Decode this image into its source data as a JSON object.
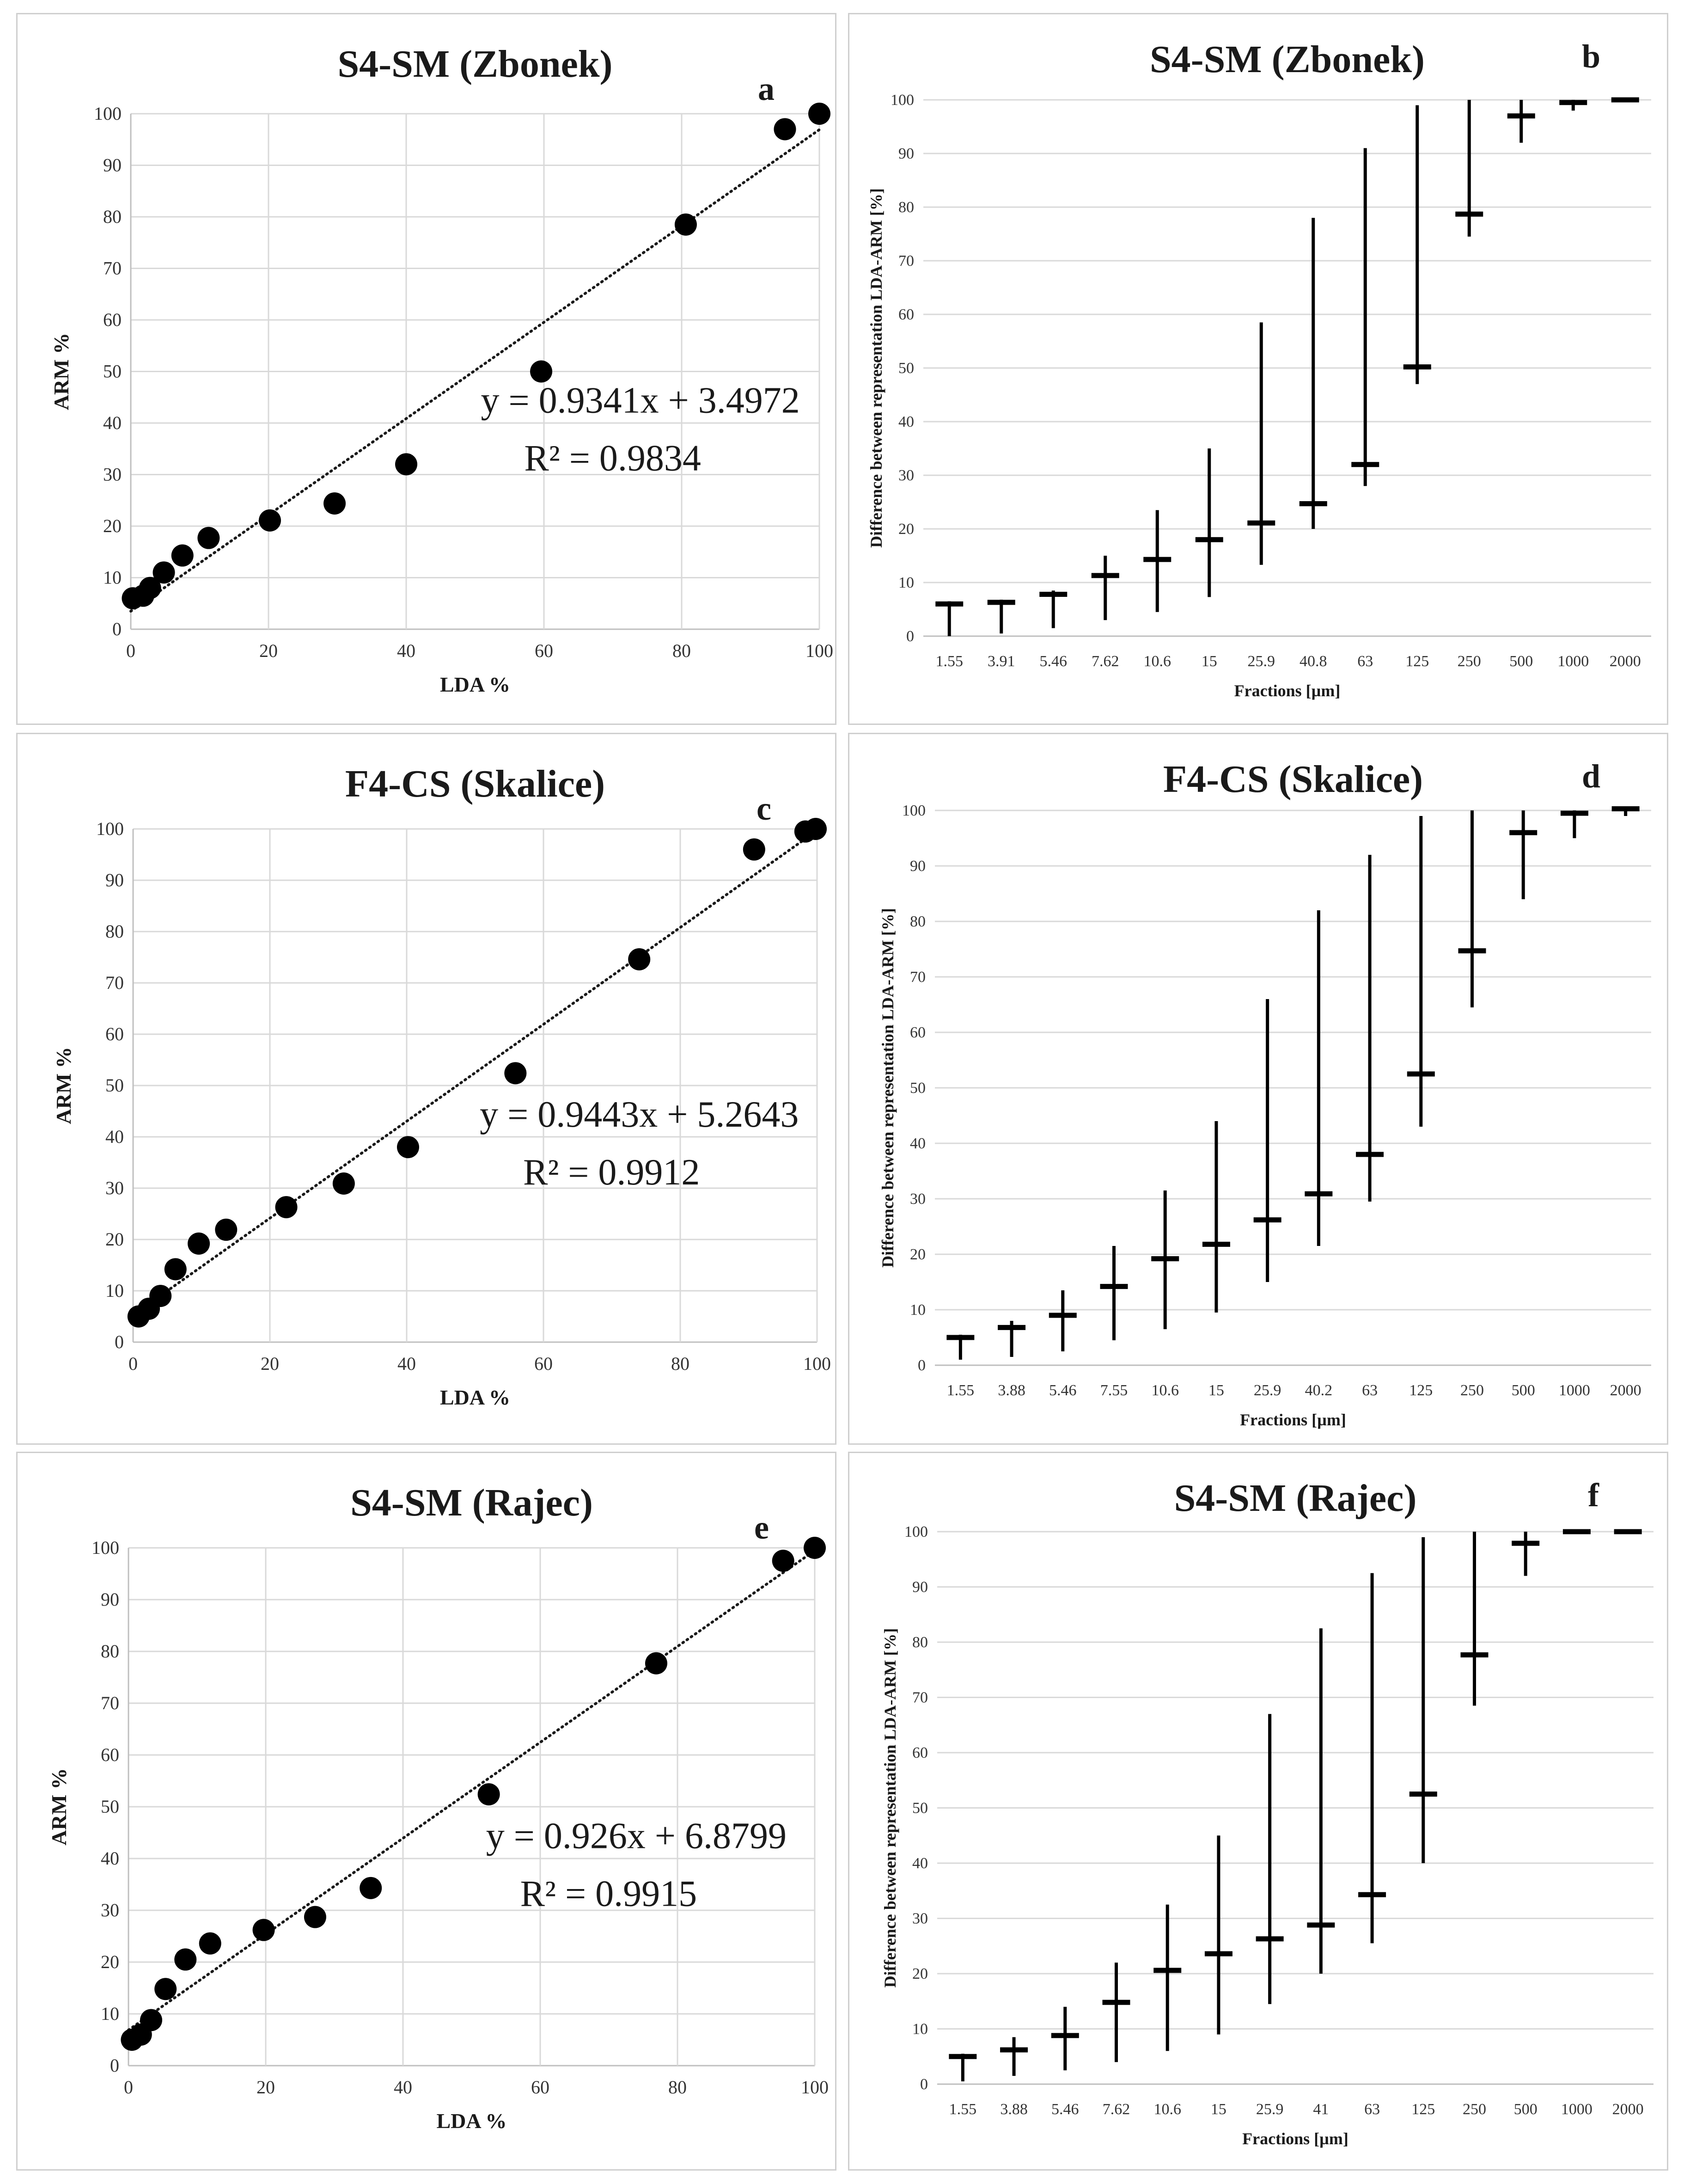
{
  "chart_data": [
    {
      "id": "a",
      "type": "scatter",
      "title": "S4-SM (Zbonek)",
      "letter": "a",
      "xlabel": "LDA %",
      "ylabel": "ARM %",
      "xlim": [
        0,
        100
      ],
      "ylim": [
        0,
        100
      ],
      "xticks": [
        0,
        20,
        40,
        60,
        80,
        100
      ],
      "yticks": [
        0,
        10,
        20,
        30,
        40,
        50,
        60,
        70,
        80,
        90,
        100
      ],
      "points": [
        [
          0.3,
          6
        ],
        [
          1.8,
          6.5
        ],
        [
          2.8,
          8
        ],
        [
          4.8,
          11
        ],
        [
          7.5,
          14.3
        ],
        [
          11.3,
          17.7
        ],
        [
          20.2,
          21.1
        ],
        [
          29.6,
          24.4
        ],
        [
          40,
          32
        ],
        [
          59.6,
          50
        ],
        [
          80.6,
          78.5
        ],
        [
          95,
          97
        ],
        [
          100,
          100
        ]
      ],
      "trendline": {
        "slope": 0.9341,
        "intercept": 3.4972
      },
      "equation": "y = 0.9341x + 3.4972",
      "r2": "R² = 0.9834"
    },
    {
      "id": "b",
      "type": "stock",
      "title": "S4-SM (Zbonek)",
      "letter": "b",
      "xlabel": "Fractions [µm]",
      "ylabel": "Difference between representation LDA-ARM [%]",
      "ylim": [
        0,
        100
      ],
      "yticks": [
        0,
        10,
        20,
        30,
        40,
        50,
        60,
        70,
        80,
        90,
        100
      ],
      "categories": [
        "1.55",
        "3.91",
        "5.46",
        "7.62",
        "10.6",
        "15",
        "25.9",
        "40.8",
        "63",
        "125",
        "250",
        "500",
        "1000",
        "2000"
      ],
      "high": [
        6.5,
        6.8,
        8.5,
        15,
        23.5,
        35,
        58.5,
        78,
        91,
        99,
        100,
        100,
        100,
        100.3
      ],
      "low": [
        0,
        0.5,
        1.5,
        3,
        4.5,
        7.3,
        13.3,
        20,
        28,
        47,
        74.5,
        92,
        98,
        99.8
      ],
      "close": [
        6,
        6.3,
        7.8,
        11.3,
        14.3,
        18,
        21.1,
        24.7,
        32,
        50.2,
        78.7,
        97,
        99.5,
        100
      ]
    },
    {
      "id": "c",
      "type": "scatter",
      "title": "F4-CS (Skalice)",
      "letter": "c",
      "xlabel": "LDA %",
      "ylabel": "ARM %",
      "xlim": [
        0,
        100
      ],
      "ylim": [
        0,
        100
      ],
      "xticks": [
        0,
        20,
        40,
        60,
        80,
        100
      ],
      "yticks": [
        0,
        10,
        20,
        30,
        40,
        50,
        60,
        70,
        80,
        90,
        100
      ],
      "points": [
        [
          0.8,
          5
        ],
        [
          2.3,
          6.5
        ],
        [
          4,
          9
        ],
        [
          6.2,
          14.2
        ],
        [
          9.6,
          19.2
        ],
        [
          13.6,
          21.9
        ],
        [
          22.4,
          26.3
        ],
        [
          30.8,
          30.9
        ],
        [
          40.2,
          38
        ],
        [
          55.9,
          52.4
        ],
        [
          74,
          74.6
        ],
        [
          90.8,
          96
        ],
        [
          98.3,
          99.5
        ],
        [
          99.8,
          100
        ]
      ],
      "trendline": {
        "slope": 0.9443,
        "intercept": 5.2643
      },
      "equation": "y = 0.9443x + 5.2643",
      "r2": "R² = 0.9912"
    },
    {
      "id": "d",
      "type": "stock",
      "title": "F4-CS (Skalice)",
      "letter": "d",
      "xlabel": "Fractions [µm]",
      "ylabel": "Difference between representation LDA-ARM [%]",
      "ylim": [
        0,
        100
      ],
      "yticks": [
        0,
        10,
        20,
        30,
        40,
        50,
        60,
        70,
        80,
        90,
        100
      ],
      "categories": [
        "1.55",
        "3.88",
        "5.46",
        "7.55",
        "10.6",
        "15",
        "25.9",
        "40.2",
        "63",
        "125",
        "250",
        "500",
        "1000",
        "2000"
      ],
      "high": [
        5.5,
        8,
        13.5,
        21.5,
        31.5,
        44,
        66,
        82,
        92,
        99,
        100,
        100,
        100,
        100.5
      ],
      "low": [
        1,
        1.5,
        2.5,
        4.5,
        6.5,
        9.5,
        15,
        21.5,
        29.5,
        43,
        64.5,
        84,
        95,
        99
      ],
      "close": [
        5,
        6.8,
        9,
        14.2,
        19.2,
        21.8,
        26.2,
        30.9,
        38,
        52.5,
        74.7,
        96,
        99.5,
        100.3
      ]
    },
    {
      "id": "e",
      "type": "scatter",
      "title": "S4-SM (Rajec)",
      "letter": "e",
      "xlabel": "LDA %",
      "ylabel": "ARM %",
      "xlim": [
        0,
        100
      ],
      "ylim": [
        0,
        100
      ],
      "xticks": [
        0,
        20,
        40,
        60,
        80,
        100
      ],
      "yticks": [
        0,
        10,
        20,
        30,
        40,
        50,
        60,
        70,
        80,
        90,
        100
      ],
      "points": [
        [
          0.5,
          5
        ],
        [
          1.8,
          6
        ],
        [
          3.3,
          8.8
        ],
        [
          5.4,
          14.8
        ],
        [
          8.3,
          20.5
        ],
        [
          11.9,
          23.6
        ],
        [
          19.7,
          26.2
        ],
        [
          27.2,
          28.7
        ],
        [
          35.3,
          34.3
        ],
        [
          52.5,
          52.4
        ],
        [
          76.9,
          77.7
        ],
        [
          95.4,
          97.5
        ],
        [
          100,
          100
        ]
      ],
      "trendline": {
        "slope": 0.926,
        "intercept": 6.8799
      },
      "equation": "y = 0.926x + 6.8799",
      "r2": "R² = 0.9915"
    },
    {
      "id": "f",
      "type": "stock",
      "title": "S4-SM (Rajec)",
      "letter": "f",
      "xlabel": "Fractions [µm]",
      "ylabel": "Difference between representation LDA-ARM [%]",
      "ylim": [
        0,
        100
      ],
      "yticks": [
        0,
        10,
        20,
        30,
        40,
        50,
        60,
        70,
        80,
        90,
        100
      ],
      "categories": [
        "1.55",
        "3.88",
        "5.46",
        "7.62",
        "10.6",
        "15",
        "25.9",
        "41",
        "63",
        "125",
        "250",
        "500",
        "1000",
        "2000"
      ],
      "high": [
        5.5,
        8.5,
        14,
        22,
        32.5,
        45,
        67,
        82.5,
        92.5,
        99,
        100,
        100,
        100,
        100
      ],
      "low": [
        0.5,
        1.5,
        2.5,
        4,
        6,
        9,
        14.5,
        20,
        25.5,
        40,
        68.5,
        92,
        100,
        100
      ],
      "close": [
        5,
        6.2,
        8.8,
        14.8,
        20.6,
        23.6,
        26.3,
        28.8,
        34.3,
        52.5,
        77.7,
        97.9,
        100,
        100
      ]
    }
  ]
}
